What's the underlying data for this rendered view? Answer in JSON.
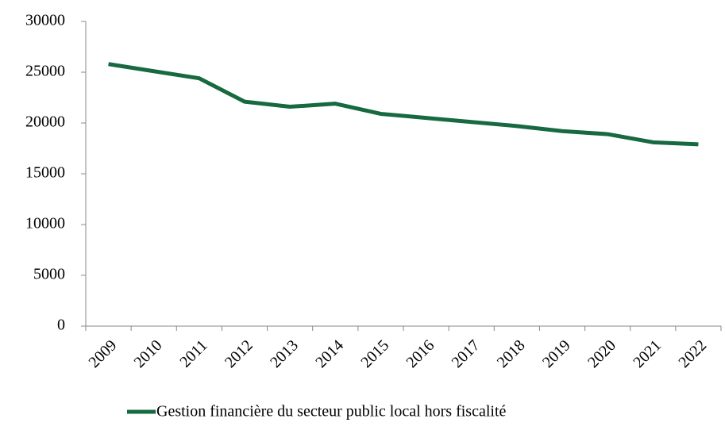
{
  "chart_data": {
    "type": "line",
    "categories": [
      "2009",
      "2010",
      "2011",
      "2012",
      "2013",
      "2014",
      "2015",
      "2016",
      "2017",
      "2018",
      "2019",
      "2020",
      "2021",
      "2022"
    ],
    "series": [
      {
        "name": "Gestion financière du secteur public local hors fiscalité",
        "color": "#17693f",
        "values": [
          25800,
          25100,
          24400,
          22100,
          21600,
          21900,
          20900,
          20500,
          20100,
          19700,
          19200,
          18900,
          18100,
          17900
        ]
      }
    ],
    "ylim": [
      0,
      30000
    ],
    "yticks": [
      0,
      5000,
      10000,
      15000,
      20000,
      25000,
      30000
    ],
    "grid": false,
    "legend": "bottom"
  }
}
